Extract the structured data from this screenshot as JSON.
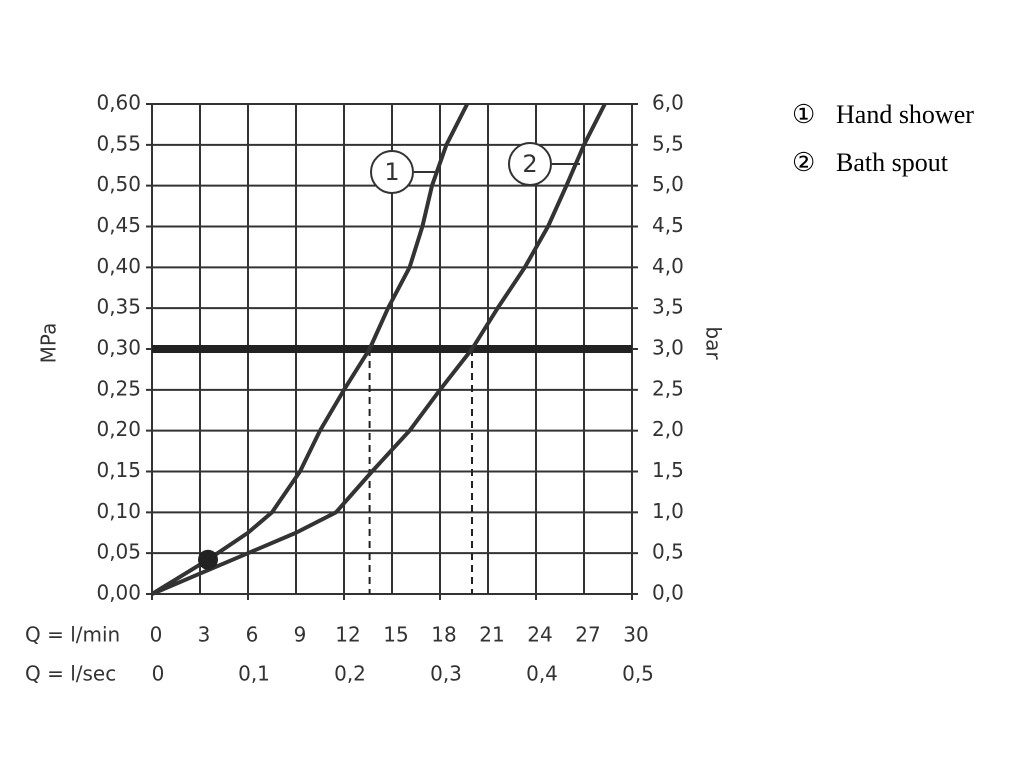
{
  "chart_data": {
    "type": "line",
    "ylabel": "MPa",
    "y2label": "bar",
    "xlabel": "Q = l/min",
    "x2label": "Q = l/sec",
    "xlim": [
      0,
      30
    ],
    "xticks": [
      0,
      3,
      6,
      9,
      12,
      15,
      18,
      21,
      24,
      27,
      30
    ],
    "x2lim": [
      0,
      0.5
    ],
    "x2ticks": [
      {
        "value": 0,
        "label": "0"
      },
      {
        "value": 0.1,
        "label": "0,1"
      },
      {
        "value": 0.2,
        "label": "0,2"
      },
      {
        "value": 0.3,
        "label": "0,3"
      },
      {
        "value": 0.4,
        "label": "0,4"
      },
      {
        "value": 0.5,
        "label": "0,5"
      }
    ],
    "ylim": [
      0,
      0.6
    ],
    "yticks": [
      {
        "value": 0,
        "label": "0,00"
      },
      {
        "value": 0.05,
        "label": "0,05"
      },
      {
        "value": 0.1,
        "label": "0,10"
      },
      {
        "value": 0.15,
        "label": "0,15"
      },
      {
        "value": 0.2,
        "label": "0,20"
      },
      {
        "value": 0.25,
        "label": "0,25"
      },
      {
        "value": 0.3,
        "label": "0,30"
      },
      {
        "value": 0.35,
        "label": "0,35"
      },
      {
        "value": 0.4,
        "label": "0,40"
      },
      {
        "value": 0.45,
        "label": "0,45"
      },
      {
        "value": 0.5,
        "label": "0,50"
      },
      {
        "value": 0.55,
        "label": "0,55"
      },
      {
        "value": 0.6,
        "label": "0,60"
      }
    ],
    "y2lim": [
      0,
      6
    ],
    "y2ticks": [
      {
        "value": 0,
        "label": "0,0"
      },
      {
        "value": 0.5,
        "label": "0,5"
      },
      {
        "value": 1,
        "label": "1,0"
      },
      {
        "value": 1.5,
        "label": "1,5"
      },
      {
        "value": 2,
        "label": "2,0"
      },
      {
        "value": 2.5,
        "label": "2,5"
      },
      {
        "value": 3,
        "label": "3,0"
      },
      {
        "value": 3.5,
        "label": "3,5"
      },
      {
        "value": 4,
        "label": "4,0"
      },
      {
        "value": 4.5,
        "label": "4,5"
      },
      {
        "value": 5,
        "label": "5,0"
      },
      {
        "value": 5.5,
        "label": "5,5"
      },
      {
        "value": 6,
        "label": "6,0"
      }
    ],
    "grid": true,
    "reference_y": 0.3,
    "guide_x": [
      13.6,
      20
    ],
    "point": {
      "x": 3.5,
      "y": 0.042
    },
    "series": [
      {
        "name": "Hand shower",
        "marker": "①",
        "label": "1",
        "color": "#333333",
        "x": [
          0,
          3.5,
          6,
          7.5,
          9.25,
          10.5,
          12,
          13.6,
          14.75,
          16.1,
          16.9,
          17.5,
          18.4,
          19.7
        ],
        "values": [
          0,
          0.042,
          0.075,
          0.1,
          0.15,
          0.2,
          0.25,
          0.3,
          0.35,
          0.4,
          0.45,
          0.5,
          0.55,
          0.6
        ]
      },
      {
        "name": "Bath spout",
        "marker": "②",
        "label": "2",
        "color": "#333333",
        "x": [
          0,
          3,
          6,
          9,
          11.5,
          13.75,
          16.1,
          18,
          20,
          21.6,
          23.3,
          24.75,
          25.9,
          27,
          28.3
        ],
        "values": [
          0,
          0.025,
          0.05,
          0.075,
          0.1,
          0.15,
          0.2,
          0.25,
          0.3,
          0.35,
          0.4,
          0.45,
          0.5,
          0.55,
          0.6
        ]
      }
    ]
  }
}
